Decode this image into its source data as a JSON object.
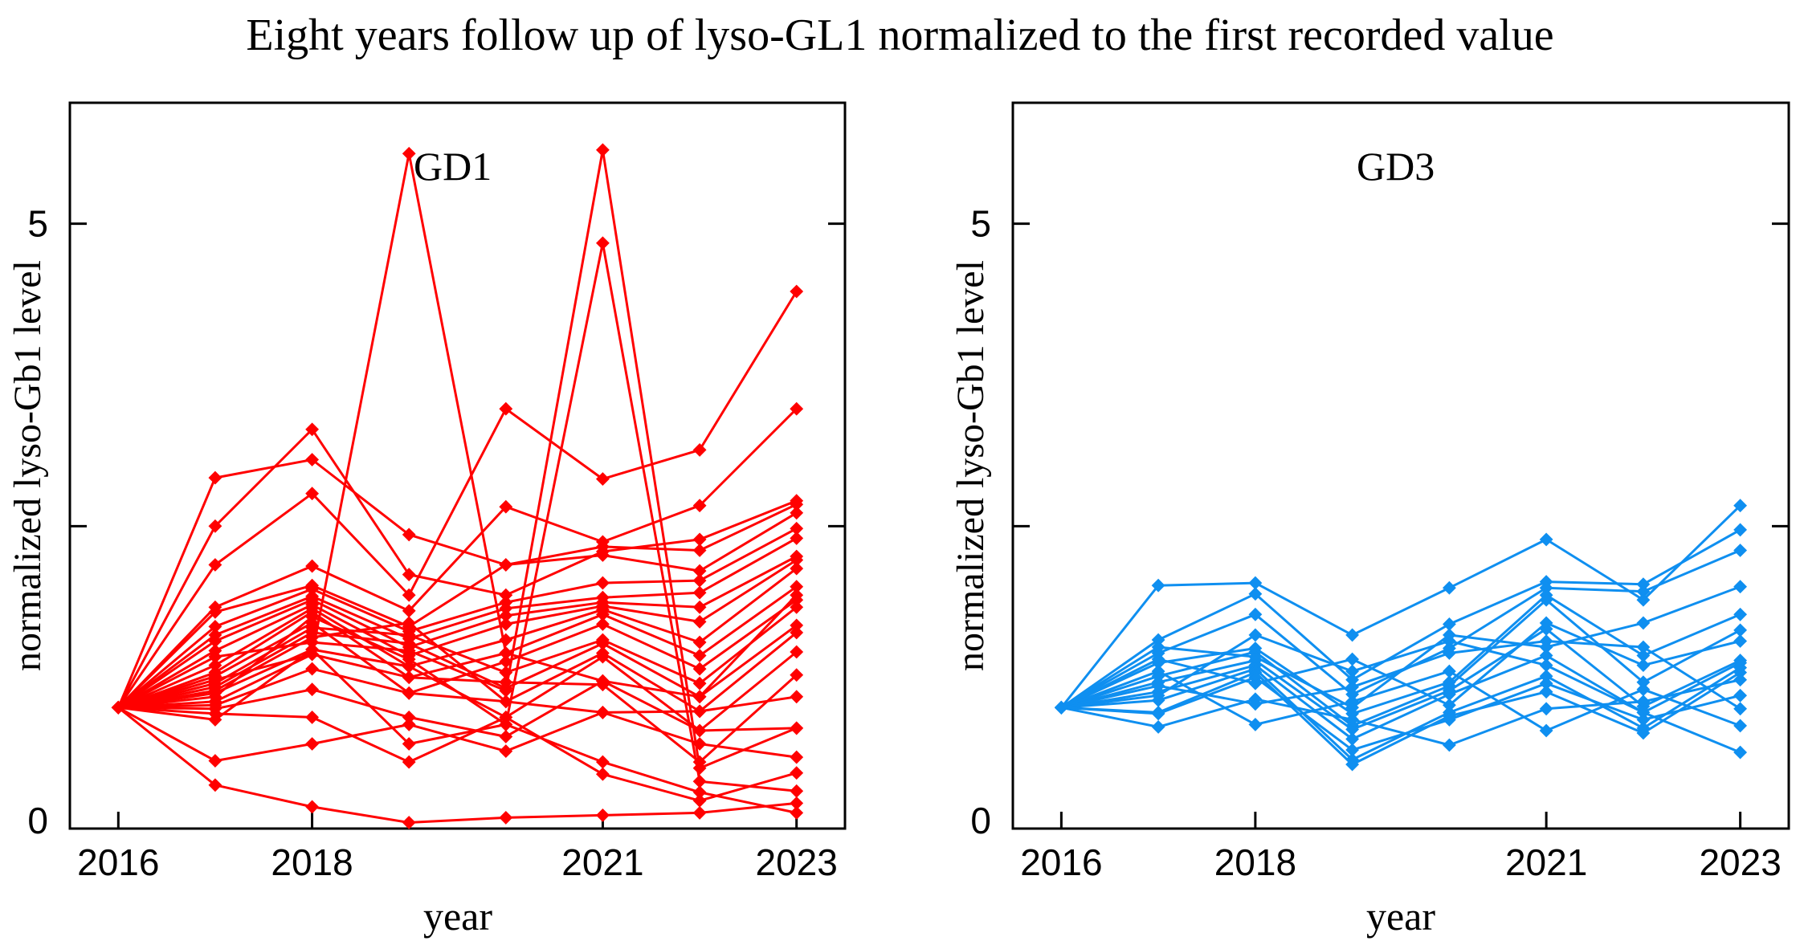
{
  "title": "Eight years follow up of lyso-GL1 normalized to the first recorded value",
  "chart_data": [
    {
      "type": "line",
      "panel_label": "GD1",
      "series_color": "#ff0000",
      "xlabel": "year",
      "ylabel": "normalized lyso-Gb1 level",
      "x": [
        2016,
        2017,
        2018,
        2019,
        2020,
        2021,
        2022,
        2023
      ],
      "xlim": [
        2015.5,
        2023.5
      ],
      "ylim": [
        0,
        6
      ],
      "grid": false,
      "legend": false,
      "xticks": {
        "values": [
          2016,
          2018,
          2021,
          2023
        ],
        "labels": [
          "2016",
          "2018",
          "2021",
          "2023"
        ]
      },
      "yticks": {
        "values": [
          0,
          2.5,
          5
        ],
        "labels": [
          "0",
          "",
          "5"
        ]
      },
      "series": [
        {
          "name": "1",
          "values": [
            1.0,
            1.23,
            1.44,
            5.58,
            1.45,
            1.22,
            1.09,
            1.93
          ]
        },
        {
          "name": "2",
          "values": [
            1.0,
            1.42,
            1.54,
            1.47,
            1.14,
            5.61,
            0.5,
            0.83
          ]
        },
        {
          "name": "3",
          "values": [
            1.0,
            1.09,
            1.75,
            1.4,
            0.86,
            4.84,
            0.39,
            0.31
          ]
        },
        {
          "name": "4",
          "values": [
            1.0,
            2.18,
            2.77,
            1.93,
            3.47,
            2.89,
            3.13,
            4.44
          ]
        },
        {
          "name": "5",
          "values": [
            1.0,
            1.83,
            2.17,
            1.8,
            2.66,
            2.37,
            2.67,
            3.47
          ]
        },
        {
          "name": "6",
          "values": [
            1.0,
            2.5,
            3.3,
            2.1,
            1.93,
            2.29,
            2.39,
            2.71
          ]
        },
        {
          "name": "7",
          "values": [
            1.0,
            2.9,
            3.05,
            2.43,
            2.18,
            2.33,
            2.3,
            2.68
          ]
        },
        {
          "name": "8",
          "values": [
            1.0,
            0.36,
            0.18,
            0.05,
            0.09,
            0.11,
            0.13,
            0.21
          ]
        },
        {
          "name": "9",
          "values": [
            1.0,
            0.56,
            0.7,
            0.86,
            0.64,
            0.96,
            0.7,
            0.59
          ]
        },
        {
          "name": "10",
          "values": [
            1.0,
            1.79,
            2.01,
            1.67,
            2.18,
            2.26,
            2.13,
            2.61
          ]
        },
        {
          "name": "11",
          "values": [
            1.0,
            1.67,
            1.98,
            1.63,
            1.87,
            2.03,
            2.05,
            2.48
          ]
        },
        {
          "name": "12",
          "values": [
            1.0,
            1.6,
            1.92,
            1.57,
            1.82,
            1.91,
            1.95,
            2.4
          ]
        },
        {
          "name": "13",
          "values": [
            1.0,
            1.55,
            1.89,
            1.5,
            1.76,
            1.87,
            1.83,
            2.25
          ]
        },
        {
          "name": "14",
          "values": [
            1.0,
            1.47,
            1.85,
            1.43,
            1.69,
            1.84,
            1.71,
            2.22
          ]
        },
        {
          "name": "15",
          "values": [
            1.0,
            1.35,
            1.82,
            1.34,
            1.56,
            1.81,
            1.54,
            2.15
          ]
        },
        {
          "name": "16",
          "values": [
            1.0,
            1.29,
            1.79,
            1.25,
            1.45,
            1.77,
            1.43,
            2.0
          ]
        },
        {
          "name": "17",
          "values": [
            1.0,
            1.26,
            1.7,
            1.12,
            1.38,
            1.69,
            1.32,
            1.89
          ]
        },
        {
          "name": "18",
          "values": [
            1.0,
            1.2,
            1.66,
            1.6,
            1.29,
            1.56,
            1.2,
            1.83
          ]
        },
        {
          "name": "19",
          "values": [
            1.0,
            1.17,
            1.62,
            1.53,
            1.16,
            1.53,
            1.09,
            1.68
          ]
        },
        {
          "name": "20",
          "values": [
            1.0,
            1.14,
            1.58,
            1.7,
            1.05,
            1.45,
            0.97,
            1.62
          ]
        },
        {
          "name": "21",
          "values": [
            1.0,
            1.12,
            1.48,
            1.34,
            0.92,
            1.42,
            0.81,
            1.46
          ]
        },
        {
          "name": "22",
          "values": [
            1.0,
            1.05,
            1.44,
            1.25,
            1.21,
            1.19,
            0.55,
            1.27
          ]
        },
        {
          "name": "23",
          "values": [
            1.0,
            1.02,
            1.32,
            1.12,
            1.05,
            0.96,
            0.97,
            1.09
          ]
        },
        {
          "name": "24",
          "values": [
            1.0,
            0.99,
            1.15,
            0.92,
            0.76,
            1.22,
            0.81,
            0.83
          ]
        },
        {
          "name": "25",
          "values": [
            1.0,
            0.95,
            0.92,
            0.55,
            0.92,
            0.45,
            0.23,
            0.46
          ]
        },
        {
          "name": "26",
          "values": [
            1.0,
            0.9,
            1.48,
            0.7,
            0.86,
            0.55,
            0.3,
            0.13
          ]
        }
      ]
    },
    {
      "type": "line",
      "panel_label": "GD3",
      "series_color": "#0f8ff0",
      "xlabel": "year",
      "ylabel": "normalized lyso-Gb1 level",
      "x": [
        2016,
        2017,
        2018,
        2019,
        2020,
        2021,
        2022,
        2023
      ],
      "xlim": [
        2015.5,
        2023.5
      ],
      "ylim": [
        0,
        6
      ],
      "grid": false,
      "legend": false,
      "xticks": {
        "values": [
          2016,
          2018,
          2021,
          2023
        ],
        "labels": [
          "2016",
          "2018",
          "2021",
          "2023"
        ]
      },
      "yticks": {
        "values": [
          0,
          2.5,
          5
        ],
        "labels": [
          "0",
          "",
          "5"
        ]
      },
      "series": [
        {
          "name": "1",
          "values": [
            1.0,
            2.01,
            2.03,
            1.6,
            1.99,
            2.39,
            1.89,
            2.67
          ]
        },
        {
          "name": "2",
          "values": [
            1.0,
            1.56,
            1.94,
            1.23,
            1.69,
            2.04,
            2.02,
            2.47
          ]
        },
        {
          "name": "3",
          "values": [
            1.0,
            1.45,
            1.77,
            1.11,
            1.49,
            1.99,
            1.96,
            2.3
          ]
        },
        {
          "name": "4",
          "values": [
            1.0,
            1.37,
            1.49,
            0.95,
            1.21,
            1.93,
            1.43,
            1.77
          ]
        },
        {
          "name": "5",
          "values": [
            1.0,
            1.26,
            1.46,
            0.85,
            1.18,
            1.89,
            1.21,
            1.64
          ]
        },
        {
          "name": "6",
          "values": [
            1.0,
            1.21,
            1.39,
            0.82,
            1.14,
            1.65,
            1.01,
            1.39
          ]
        },
        {
          "name": "7",
          "values": [
            1.0,
            1.13,
            1.35,
            0.74,
            1.11,
            1.43,
            0.96,
            1.37
          ]
        },
        {
          "name": "8",
          "values": [
            1.0,
            1.06,
            1.32,
            0.57,
            0.96,
            1.26,
            0.83,
            1.33
          ]
        },
        {
          "name": "9",
          "values": [
            1.0,
            0.96,
            1.29,
            0.53,
            0.93,
            1.13,
            0.79,
            1.29
          ]
        },
        {
          "name": "10",
          "values": [
            1.0,
            0.84,
            1.07,
            0.9,
            0.69,
            0.99,
            1.05,
            1.23
          ]
        },
        {
          "name": "11",
          "values": [
            1.0,
            1.18,
            1.03,
            1.17,
            1.45,
            1.55,
            1.5,
            0.99
          ]
        },
        {
          "name": "12",
          "values": [
            1.0,
            1.3,
            0.86,
            1.05,
            1.3,
            0.81,
            1.15,
            0.85
          ]
        },
        {
          "name": "13",
          "values": [
            1.0,
            1.1,
            1.6,
            1.3,
            1.55,
            1.35,
            0.96,
            0.63
          ]
        },
        {
          "name": "14",
          "values": [
            1.0,
            1.4,
            1.2,
            1.4,
            1.02,
            1.7,
            1.35,
            1.55
          ]
        },
        {
          "name": "15",
          "values": [
            1.0,
            0.95,
            1.25,
            0.65,
            0.9,
            1.2,
            0.9,
            1.1
          ]
        },
        {
          "name": "16",
          "values": [
            1.0,
            1.5,
            1.42,
            1.0,
            1.6,
            1.5,
            1.7,
            2.0
          ]
        }
      ]
    }
  ]
}
